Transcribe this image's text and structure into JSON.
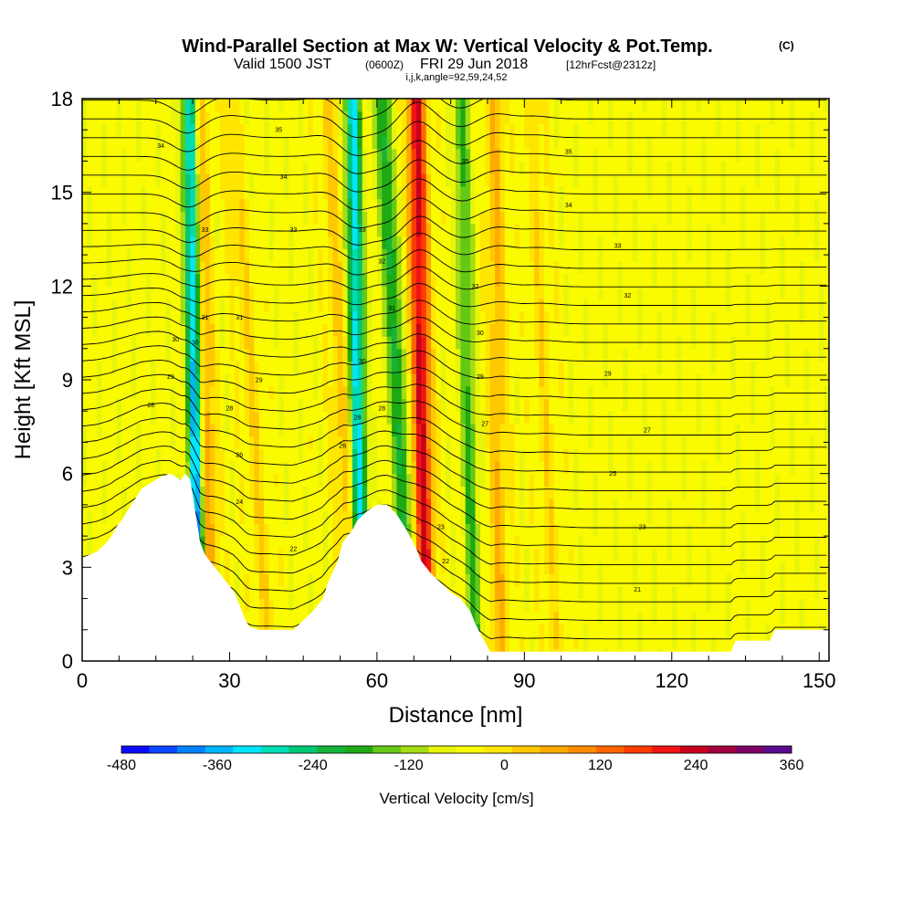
{
  "title": {
    "main": "Wind-Parallel Section at Max W: Vertical Velocity & Pot.Temp.",
    "main_mark": "(C)",
    "valid_prefix": "Valid 1500 JST",
    "valid_utc": "(0600Z)",
    "valid_date": "FRI 29 Jun 2018",
    "forecast": "[12hrFcst@2312z]",
    "indices": "i,j,k,angle=92,59,24,52"
  },
  "chart_data": {
    "type": "heatmap",
    "title": "Wind-Parallel Section at Max W: Vertical Velocity & Pot.Temp.",
    "xlabel": "Distance [nm]",
    "ylabel": "Height [Kft MSL]",
    "xlim": [
      0,
      152
    ],
    "ylim": [
      0,
      18
    ],
    "x_ticks": [
      0,
      30,
      60,
      90,
      120,
      150
    ],
    "y_ticks": [
      0,
      3,
      6,
      9,
      12,
      15,
      18
    ],
    "grid": false,
    "colorbar": {
      "title": "Vertical Velocity [cm/s]",
      "placement": "bottom",
      "min": -480,
      "max": 360,
      "step": 40,
      "tick_labels": [
        "-480",
        "-360",
        "-240",
        "-120",
        "0",
        "120",
        "240",
        "360"
      ],
      "tick_values": [
        -480,
        -360,
        -240,
        -120,
        0,
        120,
        240,
        360
      ],
      "colors": [
        "#0a0aff",
        "#0a46ff",
        "#0082ff",
        "#00b4ff",
        "#00e6ff",
        "#00dcb4",
        "#00c878",
        "#14b43c",
        "#1eaa14",
        "#64c814",
        "#a5dc14",
        "#e6f50a",
        "#fafa00",
        "#ffe600",
        "#ffc800",
        "#ffaa00",
        "#ff8c00",
        "#ff6400",
        "#ff3c00",
        "#f01414",
        "#c8001e",
        "#a0003c",
        "#7d0064",
        "#5a0a8c"
      ]
    },
    "updraft_bands": [
      {
        "x_bottom": 26,
        "x_top": 23,
        "peak": 200
      },
      {
        "x_bottom": 38,
        "x_top": 30,
        "peak": 60
      },
      {
        "x_bottom": 55,
        "x_top": 50,
        "peak": 80
      },
      {
        "x_bottom": 70,
        "x_top": 68,
        "peak": 320
      },
      {
        "x_bottom": 85,
        "x_top": 84,
        "peak": 100
      },
      {
        "x_bottom": 96,
        "x_top": 92,
        "peak": 50
      }
    ],
    "downdraft_bands": [
      {
        "x_bottom": 24,
        "x_top": 22,
        "peak": -440
      },
      {
        "x_bottom": 57,
        "x_top": 55,
        "peak": -320
      },
      {
        "x_bottom": 67,
        "x_top": 61,
        "peak": -200
      },
      {
        "x_bottom": 80,
        "x_top": 77,
        "peak": -150
      }
    ],
    "terrain": [
      {
        "x": 0,
        "y": 3.3
      },
      {
        "x": 3,
        "y": 3.5
      },
      {
        "x": 5,
        "y": 3.8
      },
      {
        "x": 6,
        "y": 4.0
      },
      {
        "x": 7,
        "y": 4.3
      },
      {
        "x": 8,
        "y": 4.5
      },
      {
        "x": 10,
        "y": 5.0
      },
      {
        "x": 12,
        "y": 5.5
      },
      {
        "x": 14,
        "y": 5.7
      },
      {
        "x": 16,
        "y": 5.9
      },
      {
        "x": 18,
        "y": 6.0
      },
      {
        "x": 20,
        "y": 5.8
      },
      {
        "x": 21,
        "y": 6.0
      },
      {
        "x": 22,
        "y": 5.8
      },
      {
        "x": 23,
        "y": 4.8
      },
      {
        "x": 24,
        "y": 3.8
      },
      {
        "x": 25,
        "y": 3.4
      },
      {
        "x": 27,
        "y": 3.0
      },
      {
        "x": 29,
        "y": 2.6
      },
      {
        "x": 31,
        "y": 2.2
      },
      {
        "x": 32,
        "y": 1.8
      },
      {
        "x": 33,
        "y": 1.4
      },
      {
        "x": 34,
        "y": 1.1
      },
      {
        "x": 36,
        "y": 1.0
      },
      {
        "x": 40,
        "y": 1.0
      },
      {
        "x": 43,
        "y": 1.0
      },
      {
        "x": 45,
        "y": 1.3
      },
      {
        "x": 47,
        "y": 1.6
      },
      {
        "x": 49,
        "y": 2.0
      },
      {
        "x": 50,
        "y": 2.5
      },
      {
        "x": 52,
        "y": 3.2
      },
      {
        "x": 53,
        "y": 3.8
      },
      {
        "x": 55,
        "y": 4.2
      },
      {
        "x": 56,
        "y": 4.5
      },
      {
        "x": 58,
        "y": 4.8
      },
      {
        "x": 60,
        "y": 5.0
      },
      {
        "x": 62,
        "y": 5.0
      },
      {
        "x": 64,
        "y": 4.7
      },
      {
        "x": 66,
        "y": 4.2
      },
      {
        "x": 68,
        "y": 3.6
      },
      {
        "x": 69,
        "y": 3.2
      },
      {
        "x": 71,
        "y": 2.8
      },
      {
        "x": 73,
        "y": 2.5
      },
      {
        "x": 75,
        "y": 2.2
      },
      {
        "x": 77,
        "y": 2.0
      },
      {
        "x": 79,
        "y": 1.6
      },
      {
        "x": 80,
        "y": 1.2
      },
      {
        "x": 81,
        "y": 0.9
      },
      {
        "x": 82,
        "y": 0.6
      },
      {
        "x": 83,
        "y": 0.3
      },
      {
        "x": 92,
        "y": 0.3
      },
      {
        "x": 100,
        "y": 0.3
      },
      {
        "x": 110,
        "y": 0.3
      },
      {
        "x": 120,
        "y": 0.3
      },
      {
        "x": 132,
        "y": 0.3
      },
      {
        "x": 133,
        "y": 0.65
      },
      {
        "x": 140,
        "y": 0.65
      },
      {
        "x": 141,
        "y": 1.0
      },
      {
        "x": 152,
        "y": 1.0
      }
    ],
    "theta_contour_labels": [
      {
        "x": 16,
        "y": 16.5,
        "text": "34"
      },
      {
        "x": 40,
        "y": 17.0,
        "text": "35"
      },
      {
        "x": 41,
        "y": 15.5,
        "text": "34"
      },
      {
        "x": 25,
        "y": 13.8,
        "text": "33"
      },
      {
        "x": 43,
        "y": 13.8,
        "text": "33"
      },
      {
        "x": 57,
        "y": 13.8,
        "text": "33"
      },
      {
        "x": 61,
        "y": 12.8,
        "text": "32"
      },
      {
        "x": 78,
        "y": 16.0,
        "text": "35"
      },
      {
        "x": 99,
        "y": 16.3,
        "text": "35"
      },
      {
        "x": 99,
        "y": 14.6,
        "text": "34"
      },
      {
        "x": 109,
        "y": 13.3,
        "text": "33"
      },
      {
        "x": 111,
        "y": 11.7,
        "text": "32"
      },
      {
        "x": 80,
        "y": 12.0,
        "text": "32"
      },
      {
        "x": 25,
        "y": 11.0,
        "text": "31"
      },
      {
        "x": 32,
        "y": 11.0,
        "text": "31"
      },
      {
        "x": 63,
        "y": 11.3,
        "text": "31"
      },
      {
        "x": 19,
        "y": 10.3,
        "text": "30"
      },
      {
        "x": 23,
        "y": 10.2,
        "text": "30"
      },
      {
        "x": 81,
        "y": 10.5,
        "text": "30"
      },
      {
        "x": 57,
        "y": 9.6,
        "text": "30"
      },
      {
        "x": 18,
        "y": 9.1,
        "text": "29"
      },
      {
        "x": 36,
        "y": 9.0,
        "text": "29"
      },
      {
        "x": 81,
        "y": 9.1,
        "text": "29"
      },
      {
        "x": 107,
        "y": 9.2,
        "text": "29"
      },
      {
        "x": 14,
        "y": 8.2,
        "text": "28"
      },
      {
        "x": 30,
        "y": 8.1,
        "text": "28"
      },
      {
        "x": 61,
        "y": 8.1,
        "text": "28"
      },
      {
        "x": 56,
        "y": 7.8,
        "text": "28"
      },
      {
        "x": 82,
        "y": 7.6,
        "text": "27"
      },
      {
        "x": 115,
        "y": 7.4,
        "text": "27"
      },
      {
        "x": 53,
        "y": 6.9,
        "text": "26"
      },
      {
        "x": 32,
        "y": 6.6,
        "text": "26"
      },
      {
        "x": 108,
        "y": 6.0,
        "text": "25"
      },
      {
        "x": 32,
        "y": 5.1,
        "text": "24"
      },
      {
        "x": 73,
        "y": 4.3,
        "text": "23"
      },
      {
        "x": 114,
        "y": 4.3,
        "text": "23"
      },
      {
        "x": 43,
        "y": 3.6,
        "text": "22"
      },
      {
        "x": 74,
        "y": 3.2,
        "text": "22"
      },
      {
        "x": 113,
        "y": 2.3,
        "text": "21"
      }
    ]
  }
}
